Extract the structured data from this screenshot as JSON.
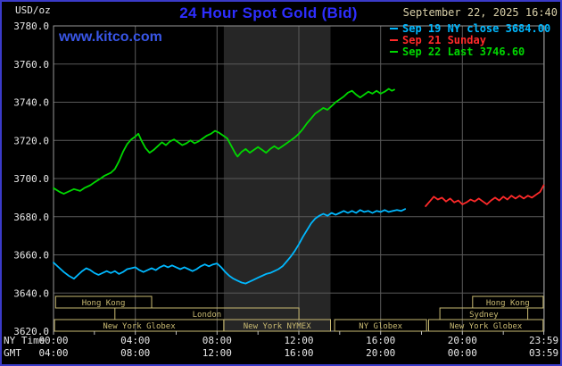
{
  "header": {
    "unit": "USD/oz",
    "title": "24 Hour Spot Gold (Bid)",
    "datetime": "September 22, 2025 16:40"
  },
  "watermark": {
    "label": "www.kitco.com"
  },
  "legend": {
    "items": [
      {
        "label": "Sep 19 NY close 3684.00",
        "color": "#00b8ff"
      },
      {
        "label": "Sep 21 Sunday",
        "color": "#ff2a2a"
      },
      {
        "label": "Sep 22 Last 3746.60",
        "color": "#00d800"
      }
    ]
  },
  "colors": {
    "background": "#000000",
    "frame": "#3a3ac8",
    "title": "#2e2eff",
    "watermark": "#3956e6",
    "date": "#d8cfa8",
    "axis_text": "#e8e8e8",
    "grid": "#5a5a5a",
    "plot_border": "#999999",
    "session": "#c9ba72",
    "band": "#262626",
    "tick": "#bbbbbb"
  },
  "chart_data": {
    "type": "line",
    "title": "24 Hour Spot Gold (Bid)",
    "ylabel": "USD/oz",
    "grid": true,
    "legend_position": "top-right",
    "y_axis": {
      "min": 3620,
      "max": 3780,
      "step": 20,
      "tick_labels": [
        "3780.0",
        "3760.0",
        "3740.0",
        "3720.0",
        "3700.0",
        "3680.0",
        "3660.0",
        "3640.0",
        "3620.0"
      ]
    },
    "x_axis": {
      "ny_label": "NY Time",
      "gmt_label": "GMT",
      "range_hours": [
        0,
        24
      ],
      "tick_hours": [
        0,
        4,
        8,
        12,
        16,
        20,
        23.983
      ],
      "ny_tick_labels": [
        "00:00",
        "04:00",
        "08:00",
        "12:00",
        "16:00",
        "20:00",
        "23:59"
      ],
      "gmt_tick_labels": [
        "04:00",
        "08:00",
        "12:00",
        "16:00",
        "20:00",
        "00:00",
        "03:59"
      ]
    },
    "nymex_band_hours": [
      8.33,
      13.55
    ],
    "sessions": [
      [
        {
          "label": "Hong Kong",
          "start": 0.1,
          "end": 4.8
        },
        {
          "label": "Hong Kong",
          "start": 20.5,
          "end": 23.95
        }
      ],
      [
        {
          "label": "London",
          "start": 3.0,
          "end": 12.0
        },
        {
          "label": "Sydney",
          "start": 18.9,
          "end": 23.2
        }
      ],
      [
        {
          "label": "New York Globex",
          "start": 0.05,
          "end": 8.33
        },
        {
          "label": "New York NYMEX",
          "start": 8.33,
          "end": 13.55
        },
        {
          "label": "NY Globex",
          "start": 13.75,
          "end": 18.25
        },
        {
          "label": "New York Globex",
          "start": 18.35,
          "end": 23.95
        }
      ]
    ],
    "series": [
      {
        "id": "sep19",
        "name": "Sep 19 NY close",
        "close_value": 3684.0,
        "color": "#00b8ff",
        "points": [
          [
            0.0,
            3656
          ],
          [
            0.25,
            3653.5
          ],
          [
            0.5,
            3651
          ],
          [
            0.75,
            3649
          ],
          [
            1.0,
            3647.5
          ],
          [
            1.2,
            3649.5
          ],
          [
            1.4,
            3651.5
          ],
          [
            1.6,
            3653
          ],
          [
            1.8,
            3652
          ],
          [
            2.0,
            3650.5
          ],
          [
            2.2,
            3649.5
          ],
          [
            2.4,
            3650.5
          ],
          [
            2.6,
            3651.5
          ],
          [
            2.8,
            3650.5
          ],
          [
            3.0,
            3651.5
          ],
          [
            3.2,
            3650
          ],
          [
            3.4,
            3651
          ],
          [
            3.6,
            3652.5
          ],
          [
            3.8,
            3653
          ],
          [
            4.0,
            3653.5
          ],
          [
            4.2,
            3652
          ],
          [
            4.4,
            3651
          ],
          [
            4.6,
            3652
          ],
          [
            4.8,
            3653
          ],
          [
            5.0,
            3652
          ],
          [
            5.2,
            3653.5
          ],
          [
            5.4,
            3654.5
          ],
          [
            5.6,
            3653.5
          ],
          [
            5.8,
            3654.5
          ],
          [
            6.0,
            3653.5
          ],
          [
            6.2,
            3652.5
          ],
          [
            6.4,
            3653.5
          ],
          [
            6.6,
            3652.5
          ],
          [
            6.8,
            3651.5
          ],
          [
            7.0,
            3652.5
          ],
          [
            7.2,
            3654
          ],
          [
            7.4,
            3655
          ],
          [
            7.6,
            3654
          ],
          [
            7.8,
            3655
          ],
          [
            8.0,
            3655.5
          ],
          [
            8.2,
            3653.5
          ],
          [
            8.4,
            3651
          ],
          [
            8.6,
            3649
          ],
          [
            8.8,
            3647.5
          ],
          [
            9.0,
            3646.5
          ],
          [
            9.2,
            3645.5
          ],
          [
            9.4,
            3645
          ],
          [
            9.6,
            3646
          ],
          [
            9.8,
            3647
          ],
          [
            10.0,
            3648
          ],
          [
            10.2,
            3649
          ],
          [
            10.4,
            3650
          ],
          [
            10.6,
            3650.5
          ],
          [
            10.8,
            3651.5
          ],
          [
            11.0,
            3652.5
          ],
          [
            11.2,
            3654
          ],
          [
            11.4,
            3656.5
          ],
          [
            11.6,
            3659
          ],
          [
            11.8,
            3662
          ],
          [
            12.0,
            3665.5
          ],
          [
            12.2,
            3669.5
          ],
          [
            12.4,
            3673
          ],
          [
            12.6,
            3676.5
          ],
          [
            12.8,
            3679
          ],
          [
            13.0,
            3680.5
          ],
          [
            13.2,
            3681.5
          ],
          [
            13.4,
            3680.5
          ],
          [
            13.6,
            3682
          ],
          [
            13.8,
            3681
          ],
          [
            14.0,
            3682
          ],
          [
            14.2,
            3683
          ],
          [
            14.4,
            3682
          ],
          [
            14.6,
            3683
          ],
          [
            14.8,
            3682
          ],
          [
            15.0,
            3683.5
          ],
          [
            15.2,
            3682.5
          ],
          [
            15.4,
            3683
          ],
          [
            15.6,
            3682
          ],
          [
            15.8,
            3683
          ],
          [
            16.0,
            3682.5
          ],
          [
            16.2,
            3683.5
          ],
          [
            16.4,
            3682.5
          ],
          [
            16.6,
            3683
          ],
          [
            16.8,
            3683.5
          ],
          [
            17.0,
            3683
          ],
          [
            17.2,
            3684
          ]
        ]
      },
      {
        "id": "sep21",
        "name": "Sep 21 Sunday",
        "color": "#ff2a2a",
        "points": [
          [
            18.2,
            3685.5
          ],
          [
            18.4,
            3688
          ],
          [
            18.6,
            3690.5
          ],
          [
            18.8,
            3689
          ],
          [
            19.0,
            3690
          ],
          [
            19.2,
            3688
          ],
          [
            19.4,
            3689.5
          ],
          [
            19.6,
            3687.5
          ],
          [
            19.8,
            3688.5
          ],
          [
            20.0,
            3686.5
          ],
          [
            20.2,
            3687.5
          ],
          [
            20.4,
            3689
          ],
          [
            20.6,
            3688
          ],
          [
            20.8,
            3689.5
          ],
          [
            21.0,
            3688
          ],
          [
            21.2,
            3686.5
          ],
          [
            21.4,
            3688.5
          ],
          [
            21.6,
            3690
          ],
          [
            21.8,
            3688.5
          ],
          [
            22.0,
            3690.5
          ],
          [
            22.2,
            3689
          ],
          [
            22.4,
            3691
          ],
          [
            22.6,
            3689.5
          ],
          [
            22.8,
            3691
          ],
          [
            23.0,
            3689.5
          ],
          [
            23.2,
            3691
          ],
          [
            23.4,
            3690
          ],
          [
            23.6,
            3691.5
          ],
          [
            23.8,
            3693
          ],
          [
            23.98,
            3696.5
          ]
        ]
      },
      {
        "id": "sep22",
        "name": "Sep 22 Last",
        "last_value": 3746.6,
        "color": "#00d800",
        "points": [
          [
            0.0,
            3695
          ],
          [
            0.3,
            3693
          ],
          [
            0.5,
            3692
          ],
          [
            0.8,
            3693.5
          ],
          [
            1.0,
            3694.5
          ],
          [
            1.3,
            3693.5
          ],
          [
            1.5,
            3695
          ],
          [
            1.8,
            3696.5
          ],
          [
            2.0,
            3698
          ],
          [
            2.3,
            3700
          ],
          [
            2.5,
            3701.5
          ],
          [
            2.8,
            3703
          ],
          [
            3.0,
            3705
          ],
          [
            3.2,
            3709
          ],
          [
            3.4,
            3714
          ],
          [
            3.6,
            3718
          ],
          [
            3.8,
            3720.5
          ],
          [
            4.0,
            3722
          ],
          [
            4.15,
            3723.5
          ],
          [
            4.3,
            3720
          ],
          [
            4.5,
            3716
          ],
          [
            4.7,
            3713.5
          ],
          [
            4.9,
            3715
          ],
          [
            5.1,
            3717
          ],
          [
            5.3,
            3719
          ],
          [
            5.5,
            3717.5
          ],
          [
            5.7,
            3719.5
          ],
          [
            5.9,
            3720.5
          ],
          [
            6.1,
            3719
          ],
          [
            6.3,
            3717.5
          ],
          [
            6.5,
            3718.5
          ],
          [
            6.7,
            3720
          ],
          [
            6.9,
            3718.5
          ],
          [
            7.1,
            3719.5
          ],
          [
            7.3,
            3721
          ],
          [
            7.5,
            3722.5
          ],
          [
            7.7,
            3723.5
          ],
          [
            7.9,
            3725
          ],
          [
            8.1,
            3724
          ],
          [
            8.3,
            3722.5
          ],
          [
            8.5,
            3721
          ],
          [
            8.7,
            3717
          ],
          [
            8.9,
            3713
          ],
          [
            9.0,
            3711.5
          ],
          [
            9.2,
            3714
          ],
          [
            9.4,
            3715.5
          ],
          [
            9.6,
            3713.5
          ],
          [
            9.8,
            3715
          ],
          [
            10.0,
            3716.5
          ],
          [
            10.2,
            3715
          ],
          [
            10.4,
            3713.5
          ],
          [
            10.6,
            3715.5
          ],
          [
            10.8,
            3717
          ],
          [
            11.0,
            3715.5
          ],
          [
            11.2,
            3717
          ],
          [
            11.4,
            3718.5
          ],
          [
            11.6,
            3720
          ],
          [
            11.8,
            3721.5
          ],
          [
            12.0,
            3723.5
          ],
          [
            12.2,
            3726
          ],
          [
            12.4,
            3729
          ],
          [
            12.6,
            3731.5
          ],
          [
            12.8,
            3734
          ],
          [
            13.0,
            3735.5
          ],
          [
            13.2,
            3737
          ],
          [
            13.4,
            3736
          ],
          [
            13.6,
            3738
          ],
          [
            13.8,
            3740
          ],
          [
            14.0,
            3741.5
          ],
          [
            14.2,
            3743
          ],
          [
            14.4,
            3745
          ],
          [
            14.6,
            3746
          ],
          [
            14.8,
            3744
          ],
          [
            15.0,
            3742.5
          ],
          [
            15.2,
            3744
          ],
          [
            15.4,
            3745.5
          ],
          [
            15.6,
            3744.5
          ],
          [
            15.8,
            3746
          ],
          [
            16.0,
            3744.5
          ],
          [
            16.2,
            3745.5
          ],
          [
            16.4,
            3747
          ],
          [
            16.55,
            3746
          ],
          [
            16.67,
            3746.6
          ]
        ]
      }
    ]
  }
}
